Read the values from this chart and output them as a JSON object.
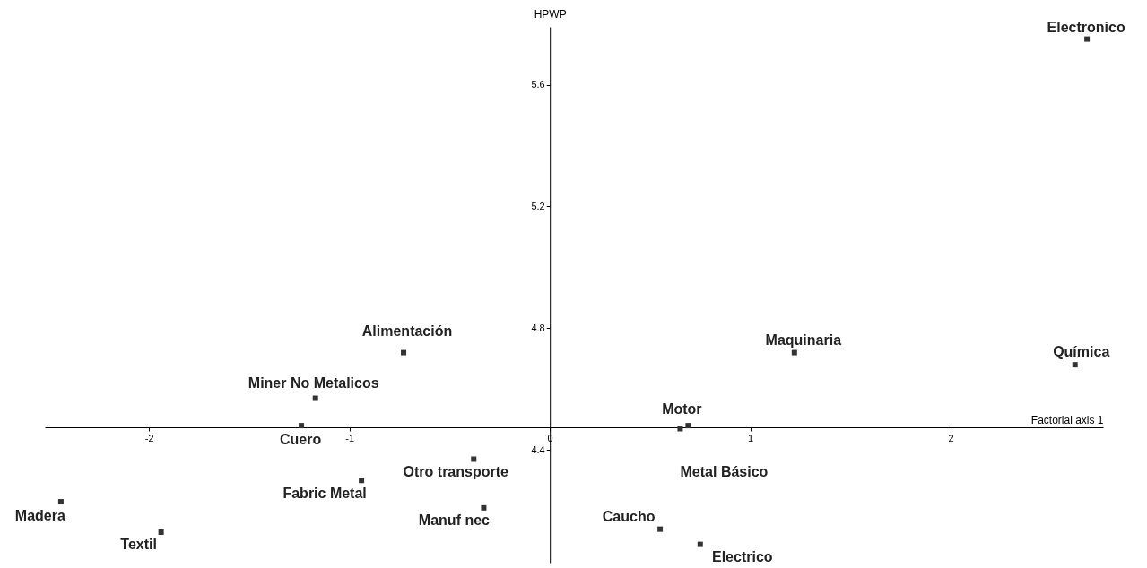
{
  "chart_data": {
    "type": "scatter",
    "xlabel": "Factorial axis 1",
    "ylabel": "HPWP",
    "xlim": [
      -2.52,
      2.76
    ],
    "ylim": [
      4.03,
      5.79
    ],
    "xticks": [
      -2,
      -1,
      0,
      1,
      2
    ],
    "yticks": [
      4.4,
      4.8,
      5.2,
      5.6
    ],
    "grid": false,
    "legend": false,
    "marker": "square",
    "series": [
      {
        "color": "#333333",
        "x": [
          2.68,
          2.62,
          1.22,
          -0.73,
          -1.17,
          -1.24,
          0.69,
          0.65,
          -0.38,
          -0.94,
          -0.33,
          -2.44,
          -1.94,
          0.55,
          0.75
        ],
        "values": [
          5.75,
          4.68,
          4.72,
          4.72,
          4.57,
          4.48,
          4.48,
          4.47,
          4.37,
          4.3,
          4.21,
          4.23,
          4.13,
          4.14,
          4.09
        ]
      }
    ],
    "annotations": [
      {
        "text": "Electronico",
        "x": 2.68,
        "y": 5.75
      },
      {
        "text": "Química",
        "x": 2.62,
        "y": 4.68
      },
      {
        "text": "Maquinaria",
        "x": 1.22,
        "y": 4.72
      },
      {
        "text": "Alimentación",
        "x": -0.73,
        "y": 4.72
      },
      {
        "text": "Miner No Metalicos",
        "x": -1.17,
        "y": 4.57
      },
      {
        "text": "Cuero",
        "x": -1.24,
        "y": 4.48
      },
      {
        "text": "Motor",
        "x": 0.69,
        "y": 4.48
      },
      {
        "text": "Metal Básico",
        "x": 0.65,
        "y": 4.47
      },
      {
        "text": "Otro transporte",
        "x": -0.38,
        "y": 4.37
      },
      {
        "text": "Fabric Metal",
        "x": -0.94,
        "y": 4.3
      },
      {
        "text": "Manuf nec",
        "x": -0.33,
        "y": 4.21
      },
      {
        "text": "Madera",
        "x": -2.44,
        "y": 4.23
      },
      {
        "text": "Textil",
        "x": -1.94,
        "y": 4.13
      },
      {
        "text": "Caucho",
        "x": 0.55,
        "y": 4.14
      },
      {
        "text": "Electrico",
        "x": 0.75,
        "y": 4.09
      }
    ]
  }
}
